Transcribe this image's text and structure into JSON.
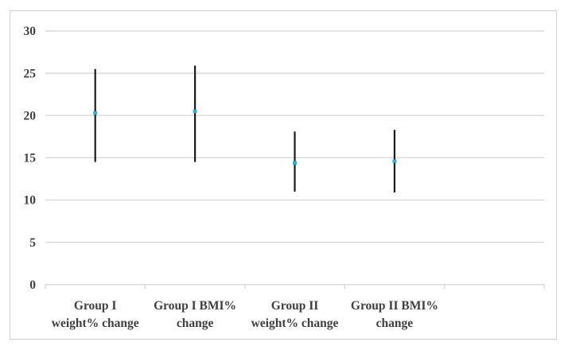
{
  "chart_data": {
    "type": "high-low-lines",
    "title": "",
    "xlabel": "",
    "ylabel": "",
    "categories": [
      "Group I weight% change",
      "Group I BMI% change",
      "Group II weight% change",
      "Group II BMI% change"
    ],
    "category_label_lines": [
      [
        "Group I",
        "weight% change"
      ],
      [
        "Group I BMI%",
        "change"
      ],
      [
        "Group II",
        "weight% change"
      ],
      [
        "Group II BMI%",
        "change"
      ]
    ],
    "series": [
      {
        "name": "high",
        "values": [
          25.5,
          25.9,
          18.1,
          18.3
        ]
      },
      {
        "name": "low",
        "values": [
          14.5,
          14.5,
          11.0,
          10.9
        ]
      },
      {
        "name": "point",
        "values": [
          20.3,
          20.5,
          14.4,
          14.6
        ]
      }
    ],
    "ylim": [
      0,
      30
    ],
    "yticks": [
      0,
      5,
      10,
      15,
      20,
      25,
      30
    ],
    "num_category_slots": 5,
    "grid": true,
    "legend": "none",
    "colors": {
      "range_line": "#1b1b1b",
      "marker": "#31afd8",
      "gridline": "#d9d9d9",
      "axis_line": "#d9d9d9",
      "tick": "#d9d9d9",
      "text": "#3f3f3f",
      "frame_border": "#d2d2d2",
      "background": "#ffffff"
    }
  }
}
